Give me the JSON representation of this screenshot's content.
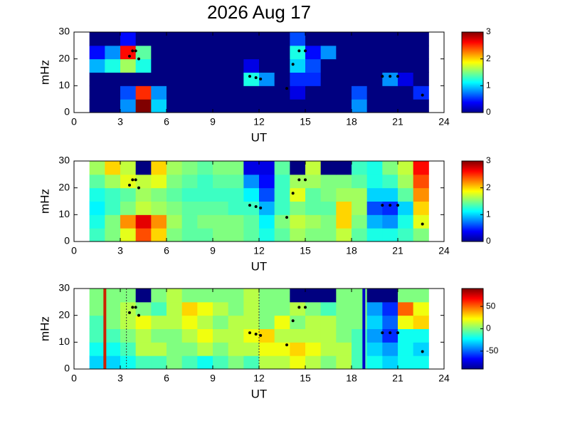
{
  "title": "2026 Aug 17",
  "markers": {
    "x": [
      3.6,
      3.8,
      4.0,
      4.2,
      11.4,
      11.8,
      12.1,
      13.8,
      14.2,
      14.6,
      15.0,
      20.0,
      20.5,
      21.0,
      22.6
    ],
    "y": [
      21,
      23,
      23,
      20,
      13.5,
      13,
      12.5,
      9,
      18,
      23,
      23,
      13.5,
      13.5,
      13.5,
      6.5
    ],
    "color": "#000000"
  },
  "chart_data": [
    {
      "type": "heatmap",
      "colormap": "jet",
      "xlabel": "UT",
      "ylabel": "mHz",
      "xlim": [
        0,
        24
      ],
      "xticks": [
        0,
        3,
        6,
        9,
        12,
        15,
        18,
        21,
        24
      ],
      "ylim": [
        0,
        30
      ],
      "yticks": [
        0,
        10,
        20,
        30
      ],
      "xbins": [
        1,
        2,
        3,
        4,
        5,
        6,
        7,
        8,
        9,
        10,
        11,
        12,
        13,
        14,
        15,
        16,
        17,
        18,
        19,
        20,
        21,
        22,
        23
      ],
      "ybins": [
        0,
        5,
        10,
        15,
        20,
        25,
        30
      ],
      "clim": [
        0,
        3
      ],
      "cticks": [
        0,
        1,
        2,
        3
      ],
      "z": [
        [
          0,
          0,
          0.8,
          3,
          1,
          0,
          0,
          0,
          0,
          0,
          0,
          0,
          0,
          0,
          0,
          0,
          0,
          0.8,
          0,
          0,
          0,
          0
        ],
        [
          0,
          0,
          0.6,
          2.5,
          0.8,
          0,
          0,
          0,
          0,
          0,
          0,
          0,
          0,
          0.3,
          0,
          0,
          0,
          0.6,
          0,
          0,
          0,
          0.5
        ],
        [
          0,
          0,
          0,
          0,
          0,
          0,
          0,
          0,
          0,
          0,
          1.2,
          0.8,
          0,
          0.5,
          0.5,
          0,
          0,
          0,
          0,
          0.8,
          0.3,
          0
        ],
        [
          0.9,
          1.2,
          1.6,
          1.2,
          0,
          0,
          0,
          0,
          0,
          0,
          0.3,
          0,
          0,
          1,
          0.6,
          0,
          0,
          0,
          0,
          0,
          0,
          0
        ],
        [
          0.4,
          0.8,
          2.6,
          1.4,
          0,
          0,
          0,
          0,
          0,
          0,
          0,
          0,
          0,
          1.2,
          0.4,
          0.8,
          0,
          0,
          0,
          0,
          0,
          0
        ],
        [
          0,
          0,
          0.4,
          0,
          0,
          0,
          0,
          0,
          0,
          0,
          0,
          0,
          0,
          0.6,
          0,
          0,
          0,
          0,
          0,
          0,
          0,
          0
        ]
      ]
    },
    {
      "type": "heatmap",
      "colormap": "jet",
      "xlabel": "UT",
      "ylabel": "mHz",
      "xlim": [
        0,
        24
      ],
      "xticks": [
        0,
        3,
        6,
        9,
        12,
        15,
        18,
        21,
        24
      ],
      "ylim": [
        0,
        30
      ],
      "yticks": [
        0,
        10,
        20,
        30
      ],
      "xbins": [
        1,
        2,
        3,
        4,
        5,
        6,
        7,
        8,
        9,
        10,
        11,
        12,
        13,
        14,
        15,
        16,
        17,
        18,
        19,
        20,
        21,
        22,
        23
      ],
      "ybins": [
        0,
        5,
        10,
        15,
        20,
        25,
        30
      ],
      "clim": [
        0,
        3
      ],
      "cticks": [
        0,
        1,
        2,
        3
      ],
      "z": [
        [
          1.3,
          1.5,
          1.8,
          2.4,
          2,
          1.5,
          1.4,
          1.4,
          1.5,
          1.5,
          1.4,
          1.2,
          1.4,
          1.6,
          1.5,
          1.5,
          1.7,
          1.4,
          1.2,
          1.2,
          1.3,
          1.5
        ],
        [
          1.2,
          1.5,
          2.2,
          2.7,
          2.2,
          1.6,
          1.4,
          1.5,
          1.5,
          1.5,
          1.4,
          1.1,
          1.5,
          1.7,
          1.6,
          1.5,
          2.0,
          1.5,
          0.9,
          0.8,
          1.2,
          1.8
        ],
        [
          1.1,
          1.3,
          1.5,
          1.7,
          1.6,
          1.5,
          1.4,
          1.4,
          1.4,
          1.3,
          1.3,
          0.9,
          1.3,
          1.5,
          1.4,
          1.4,
          2.0,
          1.6,
          0.6,
          0.5,
          1.0,
          2.0
        ],
        [
          1.2,
          1.3,
          1.4,
          1.6,
          1.5,
          1.4,
          1.3,
          1.3,
          1.3,
          1.3,
          1.1,
          0.6,
          1.3,
          1.8,
          1.4,
          1.5,
          1.6,
          1.6,
          1.0,
          1.0,
          1.4,
          2.2
        ],
        [
          1.4,
          1.6,
          1.8,
          1.7,
          1.8,
          1.5,
          1.4,
          1.3,
          1.4,
          1.4,
          0.8,
          0.4,
          1.3,
          1.6,
          1.6,
          1.5,
          1.5,
          1.4,
          1.2,
          1.3,
          1.6,
          2.4
        ],
        [
          1.6,
          2.0,
          1.7,
          0,
          2.0,
          1.6,
          1.5,
          1.4,
          1.5,
          1.5,
          0.3,
          0.3,
          1.4,
          0,
          1.7,
          0,
          0,
          1.3,
          1.2,
          1.5,
          1.7,
          2.6
        ]
      ]
    },
    {
      "type": "heatmap",
      "colormap": "jet",
      "xlabel": "UT",
      "ylabel": "mHz",
      "xlim": [
        0,
        24
      ],
      "xticks": [
        0,
        3,
        6,
        9,
        12,
        15,
        18,
        21,
        24
      ],
      "ylim": [
        0,
        30
      ],
      "yticks": [
        0,
        10,
        20,
        30
      ],
      "xbins": [
        1,
        2,
        3,
        4,
        5,
        6,
        7,
        8,
        9,
        10,
        11,
        12,
        13,
        14,
        15,
        16,
        17,
        18,
        19,
        20,
        21,
        22,
        23
      ],
      "ybins": [
        0,
        5,
        10,
        15,
        20,
        25,
        30
      ],
      "clim": [
        -90,
        90
      ],
      "cticks": [
        -50,
        0,
        50
      ],
      "vlines": {
        "x": [
          2,
          3.4,
          12,
          18.8
        ],
        "colors": [
          "#cc2200",
          "#333333",
          "#333333",
          "#0000cc"
        ],
        "dashed": [
          false,
          true,
          true,
          false
        ]
      },
      "z": [
        [
          -30,
          -30,
          -20,
          -10,
          -10,
          0,
          -10,
          -20,
          -10,
          0,
          -10,
          10,
          10,
          20,
          10,
          0,
          10,
          -10,
          -20,
          -30,
          -20,
          -20
        ],
        [
          -20,
          -20,
          -10,
          10,
          10,
          0,
          0,
          10,
          0,
          10,
          10,
          20,
          20,
          30,
          20,
          10,
          10,
          -10,
          -30,
          -40,
          -20,
          -30
        ],
        [
          -10,
          -10,
          0,
          10,
          0,
          0,
          10,
          20,
          10,
          10,
          20,
          30,
          10,
          10,
          10,
          10,
          0,
          -10,
          -40,
          -60,
          -20,
          -20
        ],
        [
          -10,
          0,
          10,
          20,
          10,
          10,
          20,
          10,
          0,
          10,
          10,
          0,
          20,
          0,
          10,
          10,
          0,
          0,
          -30,
          -50,
          20,
          30
        ],
        [
          0,
          0,
          10,
          0,
          -10,
          10,
          30,
          20,
          10,
          0,
          10,
          0,
          0,
          10,
          0,
          -10,
          0,
          0,
          -40,
          -60,
          50,
          20
        ],
        [
          0,
          0,
          0,
          -90,
          0,
          10,
          0,
          0,
          0,
          0,
          10,
          0,
          0,
          -90,
          -90,
          -90,
          0,
          0,
          -90,
          -90,
          0,
          0
        ]
      ]
    }
  ]
}
